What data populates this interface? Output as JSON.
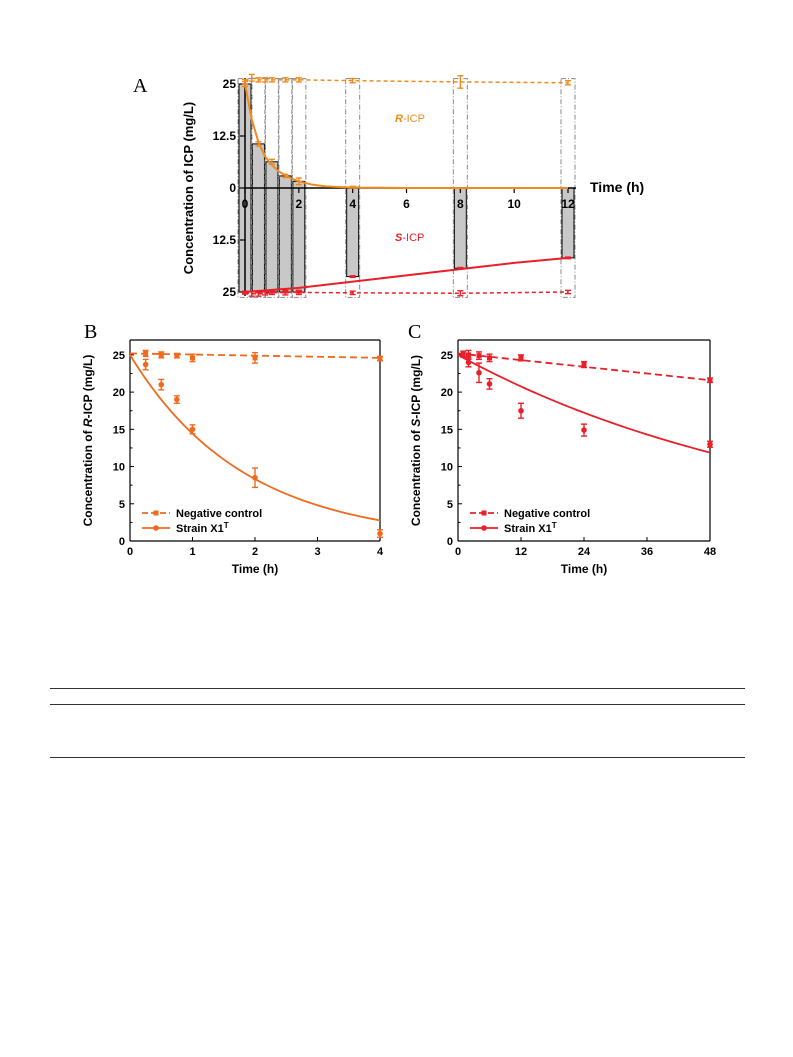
{
  "colors": {
    "r_icp": "#f08a1e",
    "s_icp": "#e8202a",
    "panel_b": "#f06a1e",
    "panel_c": "#e8202a",
    "grey_bar": "#c8c8c8",
    "dash_box": "#888888"
  },
  "chart_data": [
    {
      "panel": "A",
      "type": "area",
      "xlabel": "Time (h)",
      "ylabel": "Concentration of ICP (mg/L)",
      "x_ticks": [
        "0",
        "2",
        "4",
        "6",
        "8",
        "10",
        "12"
      ],
      "y_ticks_upper": [
        "25",
        "12.5",
        "0"
      ],
      "y_ticks_lower": [
        "12.5",
        "25"
      ],
      "xlim": [
        0,
        12
      ],
      "ylim": [
        0,
        25
      ],
      "series": [
        {
          "name": "R-ICP",
          "label_prefix": "R",
          "label_suffix": "-ICP",
          "control": {
            "x": [
              0,
              0.25,
              0.5,
              0.75,
              1,
              1.5,
              2,
              4,
              8,
              12
            ],
            "y": [
              25.5,
              26.5,
              26,
              26,
              26,
              26,
              26,
              25.8,
              25.5,
              25.3
            ],
            "err": [
              0.6,
              0.8,
              0.5,
              0.5,
              0.5,
              0.5,
              0.5,
              0.5,
              1.5,
              0.5
            ]
          },
          "fit": {
            "x": [
              0,
              0.25,
              0.5,
              0.75,
              1,
              1.25,
              1.5,
              1.75,
              2,
              2.5,
              3,
              4,
              6,
              8,
              12
            ],
            "y": [
              25,
              16.5,
              11,
              7.5,
              5.5,
              4,
              3,
              2.2,
              1.6,
              0.8,
              0.4,
              0.1,
              0,
              0,
              0
            ]
          },
          "points": {
            "x": [
              0,
              0.5,
              1,
              1.5,
              2,
              4
            ],
            "y": [
              25,
              10.6,
              6.3,
              2.9,
              1.6,
              0.2
            ],
            "err": [
              0.6,
              0.5,
              0.6,
              0.4,
              0.8,
              0.2
            ]
          },
          "bars": [
            {
              "x": 0,
              "y": 25
            },
            {
              "x": 0.5,
              "y": 10.6
            },
            {
              "x": 1,
              "y": 6.3
            },
            {
              "x": 1.5,
              "y": 2.9
            },
            {
              "x": 2,
              "y": 1.6
            },
            {
              "x": 4,
              "y": 0.2
            }
          ]
        },
        {
          "name": "S-ICP",
          "label_prefix": "S",
          "label_suffix": "-ICP",
          "control": {
            "x": [
              0,
              0.25,
              0.5,
              0.75,
              1,
              1.5,
              2,
              4,
              8,
              12
            ],
            "y": [
              25.2,
              25.4,
              25.5,
              25.3,
              25.2,
              25.1,
              25.1,
              25.2,
              25.3,
              25.0
            ],
            "err": [
              0.3,
              0.6,
              0.5,
              0.4,
              0.4,
              0.6,
              0.5,
              0.4,
              0.6,
              0.4
            ]
          },
          "fit": {
            "x": [
              0,
              2,
              4,
              6,
              8,
              10,
              12
            ],
            "y": [
              25,
              24,
              22.5,
              21,
              19.5,
              18,
              16.8
            ]
          },
          "points": {
            "x": [
              0,
              0.5,
              1,
              1.5,
              2,
              4,
              8,
              12
            ],
            "y": [
              25,
              25,
              25,
              25,
              25,
              21.3,
              19.3,
              16.8
            ],
            "err": [
              0.3,
              0.3,
              0.3,
              0.3,
              0.3,
              0.2,
              0.2,
              0.2
            ]
          },
          "bars": [
            {
              "x": 0,
              "y": 25
            },
            {
              "x": 0.5,
              "y": 25
            },
            {
              "x": 1,
              "y": 25
            },
            {
              "x": 1.5,
              "y": 25
            },
            {
              "x": 2,
              "y": 25
            },
            {
              "x": 4,
              "y": 21.3
            },
            {
              "x": 8,
              "y": 19.3
            },
            {
              "x": 12,
              "y": 16.8
            }
          ]
        }
      ]
    },
    {
      "panel": "B",
      "type": "line",
      "xlabel": "Time (h)",
      "ylabel_prefix": "Concentration of ",
      "ylabel_italic": "R",
      "ylabel_suffix": "-ICP (mg/L)",
      "xlim": [
        0,
        4
      ],
      "ylim": [
        0,
        27
      ],
      "x_ticks": [
        "0",
        "1",
        "2",
        "3",
        "4"
      ],
      "y_ticks": [
        "0",
        "5",
        "10",
        "15",
        "20",
        "25"
      ],
      "legend_position": "bottom-left",
      "series": [
        {
          "name": "Negative control",
          "style": "dashed",
          "x": [
            0.25,
            0.5,
            0.75,
            1,
            2,
            4
          ],
          "y": [
            25.2,
            25,
            24.9,
            24.6,
            24.6,
            24.5
          ],
          "err": [
            0.4,
            0.4,
            0.3,
            0.5,
            0.7,
            0.3
          ],
          "fit": [
            [
              0,
              25.2
            ],
            [
              4,
              24.6
            ]
          ]
        },
        {
          "name": "Strain X1",
          "superscript": "T",
          "style": "solid",
          "x": [
            0.25,
            0.5,
            0.75,
            1,
            2,
            4
          ],
          "y": [
            23.7,
            21,
            19,
            15,
            8.5,
            1
          ],
          "err": [
            0.7,
            0.7,
            0.5,
            0.6,
            1.3,
            0.5
          ],
          "fit_k": 0.55,
          "fit_c0": 25
        }
      ]
    },
    {
      "panel": "C",
      "type": "line",
      "xlabel": "Time (h)",
      "ylabel_prefix": "Concentration of ",
      "ylabel_italic": "S",
      "ylabel_suffix": "-ICP (mg/L)",
      "xlim": [
        0,
        48
      ],
      "ylim": [
        0,
        27
      ],
      "x_ticks": [
        "0",
        "12",
        "24",
        "36",
        "48"
      ],
      "y_ticks": [
        "0",
        "5",
        "10",
        "15",
        "20",
        "25"
      ],
      "legend_position": "bottom-left",
      "series": [
        {
          "name": "Negative control",
          "style": "dashed",
          "x": [
            1,
            2,
            4,
            6,
            12,
            24,
            48
          ],
          "y": [
            25.1,
            25,
            24.9,
            24.6,
            24.6,
            23.7,
            21.6
          ],
          "err": [
            0.4,
            0.6,
            0.5,
            0.5,
            0.4,
            0.4,
            0.3
          ],
          "fit": [
            [
              0,
              25.2
            ],
            [
              48,
              21.6
            ]
          ]
        },
        {
          "name": "Strain X1",
          "superscript": "T",
          "style": "solid",
          "x": [
            2,
            4,
            6,
            12,
            24,
            48
          ],
          "y": [
            24,
            22.6,
            21.1,
            17.5,
            14.9,
            13
          ],
          "err": [
            0.6,
            1.3,
            0.7,
            1.0,
            0.8,
            0.4
          ],
          "fit_k": 0.0155,
          "fit_c0": 25
        }
      ]
    }
  ]
}
